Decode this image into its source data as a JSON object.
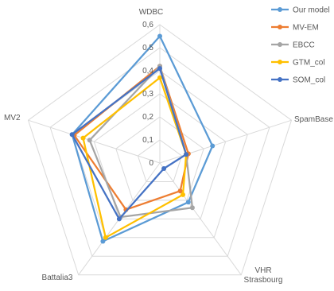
{
  "chart_data": {
    "type": "radar",
    "title": "",
    "categories": [
      "WDBC",
      "SpamBase",
      "VHR\nStrasbourg",
      "Battalia3",
      "MV2"
    ],
    "rlim": [
      0,
      0.6
    ],
    "ticks": [
      "0",
      "0,1",
      "0,2",
      "0,3",
      "0,4",
      "0,5",
      "0,6"
    ],
    "tick_values": [
      0,
      0.1,
      0.2,
      0.3,
      0.4,
      0.5,
      0.6
    ],
    "grid": true,
    "legend_position": "top-right",
    "series": [
      {
        "name": "Our model",
        "color": "#5B9BD5",
        "values": [
          0.55,
          0.24,
          0.21,
          0.42,
          0.4
        ]
      },
      {
        "name": "MV-EM",
        "color": "#ED7D31",
        "values": [
          0.42,
          0.13,
          0.15,
          0.25,
          0.39
        ]
      },
      {
        "name": "EBCC",
        "color": "#A5A5A5",
        "values": [
          0.42,
          0.12,
          0.24,
          0.29,
          0.32
        ]
      },
      {
        "name": "GTM_col",
        "color": "#FFC000",
        "values": [
          0.37,
          0.12,
          0.17,
          0.4,
          0.35
        ]
      },
      {
        "name": "SOM_col",
        "color": "#4472C4",
        "values": [
          0.41,
          0.12,
          0.03,
          0.3,
          0.4
        ]
      }
    ]
  }
}
